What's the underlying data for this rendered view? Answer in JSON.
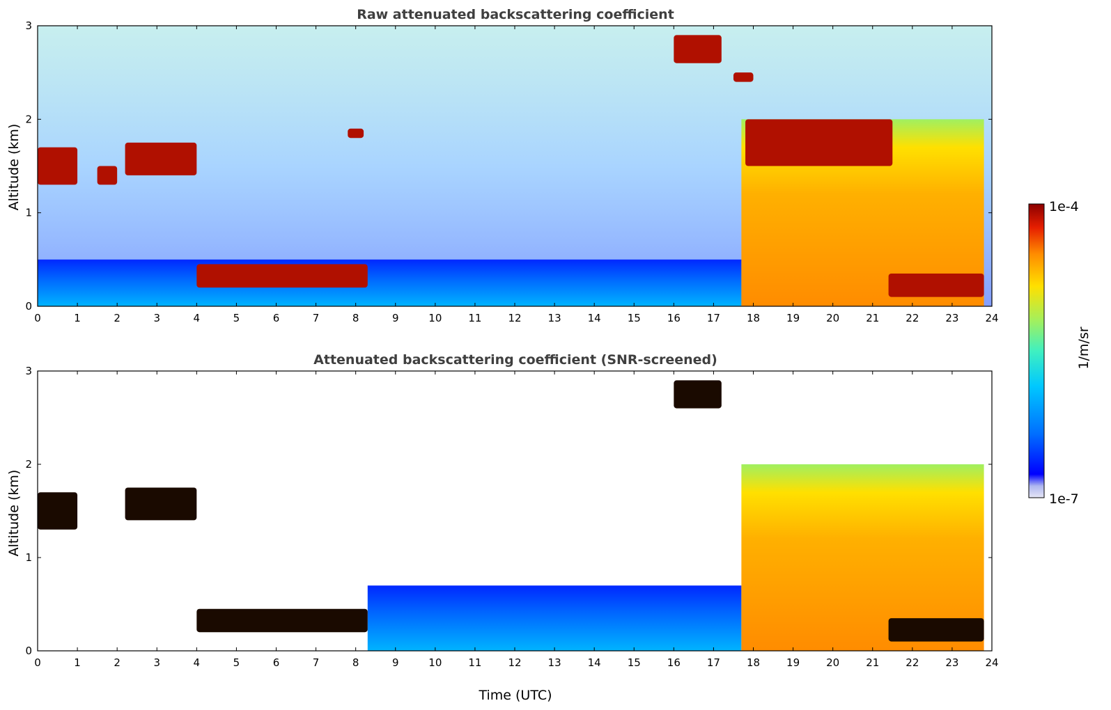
{
  "chart_data": [
    {
      "type": "heatmap",
      "title": "Raw attenuated backscattering coefficient",
      "xlabel": "",
      "ylabel": "Altitude (km)",
      "xlim": [
        0,
        24
      ],
      "ylim": [
        0,
        3
      ],
      "x_ticks": [
        0,
        1,
        2,
        3,
        4,
        5,
        6,
        7,
        8,
        9,
        10,
        11,
        12,
        13,
        14,
        15,
        16,
        17,
        18,
        19,
        20,
        21,
        22,
        23,
        24
      ],
      "y_ticks": [
        0,
        1,
        2,
        3
      ],
      "features": [
        {
          "kind": "cloud",
          "x": [
            0,
            1.0
          ],
          "y": [
            1.3,
            1.7
          ],
          "level": "high"
        },
        {
          "kind": "cloud",
          "x": [
            1.5,
            2.0
          ],
          "y": [
            1.3,
            1.5
          ],
          "level": "high"
        },
        {
          "kind": "cloud",
          "x": [
            2.2,
            4.0
          ],
          "y": [
            1.4,
            1.75
          ],
          "level": "high"
        },
        {
          "kind": "cloud",
          "x": [
            4.0,
            8.3
          ],
          "y": [
            0.2,
            0.45
          ],
          "level": "high"
        },
        {
          "kind": "cloud",
          "x": [
            7.8,
            8.2
          ],
          "y": [
            1.8,
            1.9
          ],
          "level": "high"
        },
        {
          "kind": "cloud",
          "x": [
            16.0,
            17.2
          ],
          "y": [
            2.6,
            2.9
          ],
          "level": "high"
        },
        {
          "kind": "cloud",
          "x": [
            17.5,
            18.0
          ],
          "y": [
            2.4,
            2.5
          ],
          "level": "high"
        },
        {
          "kind": "cloud",
          "x": [
            17.8,
            21.5
          ],
          "y": [
            1.5,
            2.0
          ],
          "level": "high"
        },
        {
          "kind": "cloud",
          "x": [
            21.4,
            23.8
          ],
          "y": [
            0.1,
            0.35
          ],
          "level": "high"
        },
        {
          "kind": "boundary_layer",
          "x": [
            0,
            17.7
          ],
          "y": [
            0,
            0.5
          ],
          "level": "low"
        },
        {
          "kind": "aerosol",
          "x": [
            17.7,
            23.8
          ],
          "y": [
            0,
            2.0
          ],
          "level": "medium-high"
        }
      ]
    },
    {
      "type": "heatmap",
      "title": "Attenuated backscattering coefficient (SNR-screened)",
      "xlabel": "Time (UTC)",
      "ylabel": "Altitude (km)",
      "xlim": [
        0,
        24
      ],
      "ylim": [
        0,
        3
      ],
      "x_ticks": [
        0,
        1,
        2,
        3,
        4,
        5,
        6,
        7,
        8,
        9,
        10,
        11,
        12,
        13,
        14,
        15,
        16,
        17,
        18,
        19,
        20,
        21,
        22,
        23,
        24
      ],
      "y_ticks": [
        0,
        1,
        2,
        3
      ],
      "features": [
        {
          "kind": "cloud",
          "x": [
            0,
            1.0
          ],
          "y": [
            1.3,
            1.7
          ],
          "level": "saturated"
        },
        {
          "kind": "cloud",
          "x": [
            2.2,
            4.0
          ],
          "y": [
            1.4,
            1.75
          ],
          "level": "saturated"
        },
        {
          "kind": "cloud",
          "x": [
            4.0,
            8.3
          ],
          "y": [
            0.2,
            0.45
          ],
          "level": "saturated"
        },
        {
          "kind": "cloud",
          "x": [
            16.0,
            17.2
          ],
          "y": [
            2.6,
            2.9
          ],
          "level": "saturated"
        },
        {
          "kind": "cloud",
          "x": [
            21.4,
            23.8
          ],
          "y": [
            0.1,
            0.35
          ],
          "level": "saturated"
        },
        {
          "kind": "boundary_layer",
          "x": [
            8.3,
            17.7
          ],
          "y": [
            0,
            0.7
          ],
          "level": "low"
        },
        {
          "kind": "aerosol",
          "x": [
            17.7,
            23.8
          ],
          "y": [
            0,
            2.0
          ],
          "level": "medium-high"
        }
      ]
    }
  ],
  "colorbar": {
    "label": "1/m/sr",
    "max_label": "1e-4",
    "min_label": "1e-7",
    "colors": [
      "#e6e6f5",
      "#aeb6f0",
      "#0000ff",
      "#0070ff",
      "#00c8ff",
      "#40f0c0",
      "#a0f060",
      "#ffe000",
      "#ff8c00",
      "#e61e00",
      "#8b0000"
    ]
  }
}
